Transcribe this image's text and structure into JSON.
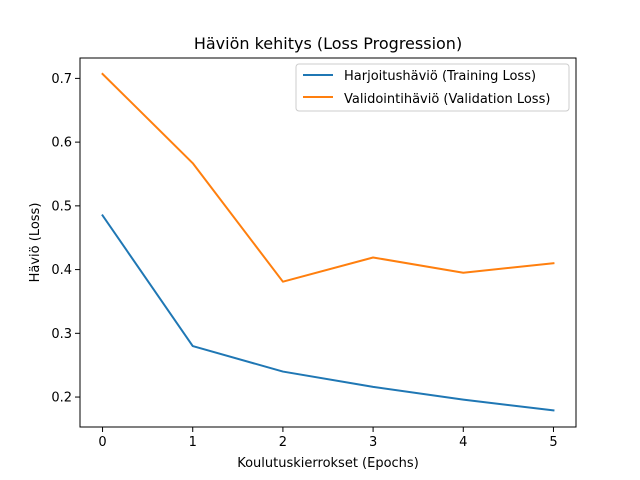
{
  "chart_data": {
    "type": "line",
    "title": "Häviön kehitys (Loss Progression)",
    "xlabel": "Koulutuskierrokset (Epochs)",
    "ylabel": "Häviö (Loss)",
    "x": [
      0,
      1,
      2,
      3,
      4,
      5
    ],
    "xlim": [
      -0.25,
      5.25
    ],
    "ylim": [
      0.153,
      0.732
    ],
    "xticks": [
      0,
      1,
      2,
      3,
      4,
      5
    ],
    "yticks": [
      0.2,
      0.3,
      0.4,
      0.5,
      0.6,
      0.7
    ],
    "grid": false,
    "legend_position": "top-right",
    "series": [
      {
        "name": "Harjoitushäviö (Training Loss)",
        "color": "#1f77b4",
        "values": [
          0.485,
          0.28,
          0.24,
          0.216,
          0.196,
          0.179
        ]
      },
      {
        "name": "Validointihäviö (Validation Loss)",
        "color": "#ff7f0e",
        "values": [
          0.707,
          0.567,
          0.381,
          0.419,
          0.395,
          0.41
        ]
      }
    ]
  }
}
